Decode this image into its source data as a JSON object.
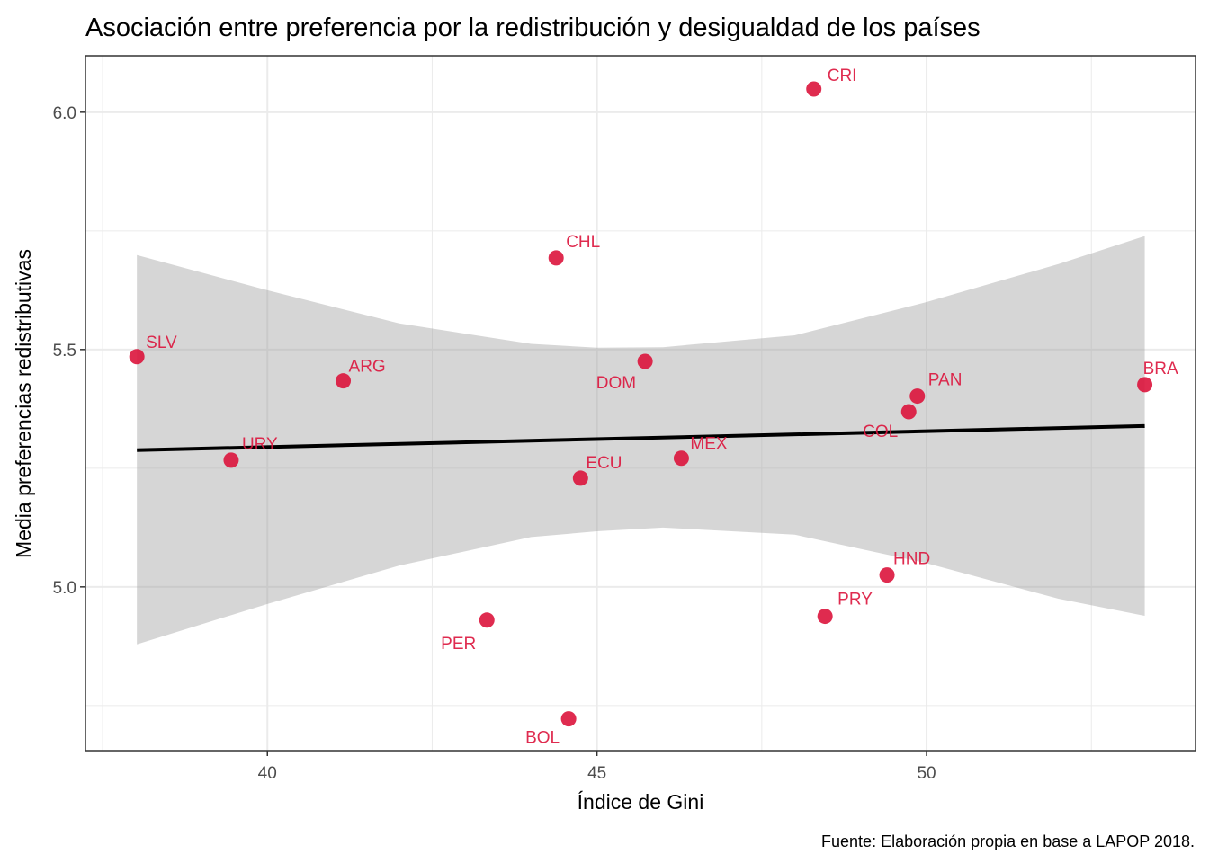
{
  "chart_data": {
    "type": "scatter",
    "title": "Asociación entre preferencia por la redistribución y desigualdad de los países",
    "xlabel": "Índice de Gini",
    "ylabel": "Media preferencias redistributivas",
    "caption": "Fuente: Elaboración propia en base a LAPOP 2018.",
    "xlim": [
      37.24,
      54.08
    ],
    "ylim": [
      4.655,
      6.119
    ],
    "x_ticks": [
      40,
      45,
      50
    ],
    "x_tick_labels": [
      "40",
      "45",
      "50"
    ],
    "x_minor_ticks": [
      37.5,
      42.5,
      47.5,
      52.5
    ],
    "y_ticks": [
      5.0,
      5.5,
      6.0
    ],
    "y_tick_labels": [
      "5.0",
      "5.5",
      "6.0"
    ],
    "y_minor_ticks": [
      4.75,
      5.25,
      5.75
    ],
    "grid": true,
    "point_color": "#DC143C",
    "points": [
      {
        "label": "SLV",
        "x": 38.02,
        "y": 5.485
      },
      {
        "label": "URY",
        "x": 39.45,
        "y": 5.267
      },
      {
        "label": "ARG",
        "x": 41.15,
        "y": 5.434
      },
      {
        "label": "PER",
        "x": 43.33,
        "y": 4.93
      },
      {
        "label": "CHL",
        "x": 44.38,
        "y": 5.693
      },
      {
        "label": "BOL",
        "x": 44.57,
        "y": 4.722
      },
      {
        "label": "ECU",
        "x": 44.75,
        "y": 5.229
      },
      {
        "label": "DOM",
        "x": 45.73,
        "y": 5.475
      },
      {
        "label": "MEX",
        "x": 46.28,
        "y": 5.271
      },
      {
        "label": "CRI",
        "x": 48.29,
        "y": 6.049
      },
      {
        "label": "PRY",
        "x": 48.46,
        "y": 4.938
      },
      {
        "label": "HND",
        "x": 49.4,
        "y": 5.025
      },
      {
        "label": "COL",
        "x": 49.73,
        "y": 5.369
      },
      {
        "label": "PAN",
        "x": 49.86,
        "y": 5.402
      },
      {
        "label": "BRA",
        "x": 53.31,
        "y": 5.426
      }
    ],
    "regression": {
      "method": "lm",
      "x_range": [
        38.02,
        53.31
      ],
      "y_start": 5.288,
      "y_end": 5.339,
      "confidence_band": {
        "x": [
          38.02,
          40,
          42,
          44,
          45,
          46,
          48,
          50,
          52,
          53.31
        ],
        "lower": [
          4.879,
          4.964,
          5.045,
          5.105,
          5.117,
          5.125,
          5.11,
          5.05,
          4.975,
          4.939
        ],
        "upper": [
          5.699,
          5.625,
          5.555,
          5.512,
          5.504,
          5.505,
          5.53,
          5.6,
          5.68,
          5.739
        ]
      }
    }
  }
}
